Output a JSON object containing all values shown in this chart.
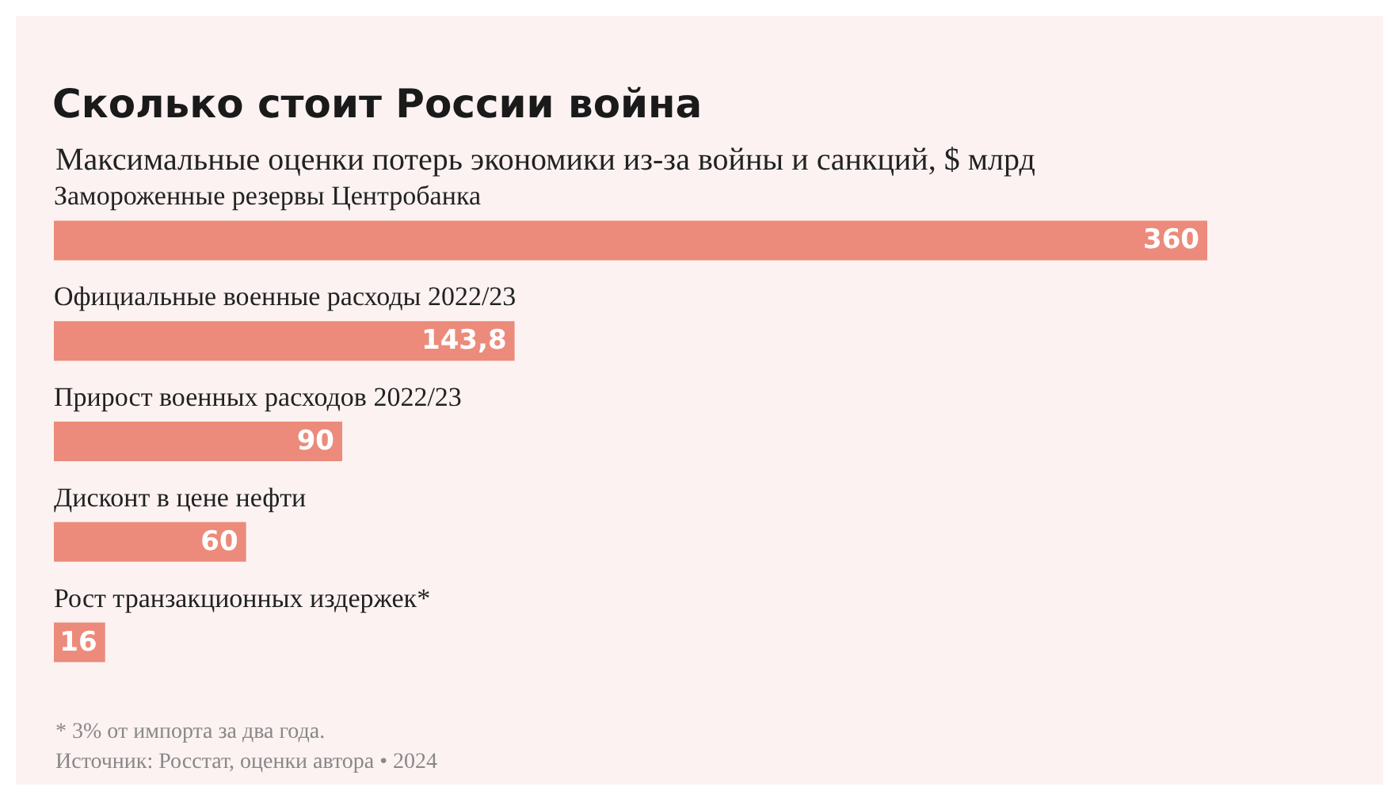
{
  "chart_data": {
    "type": "bar",
    "orientation": "horizontal",
    "title": "Сколько стоит России война",
    "subtitle": "Максимальные оценки потерь экономики из-за войны и санкций, $ млрд",
    "categories": [
      "Замороженные резервы Центробанка",
      "Официальные военные расходы 2022/23",
      "Прирост военных расходов 2022/23",
      "Дисконт в цене нефти",
      "Рост транзакционных издержек*"
    ],
    "values": [
      360,
      143.8,
      90,
      60,
      16
    ],
    "value_labels": [
      "360",
      "143,8",
      "90",
      "60",
      "16"
    ],
    "color": "#ec8b7b",
    "annotations": [
      "* 3% от импорта за два года.",
      "Источник: Росстат, оценки автора • 2024"
    ]
  }
}
